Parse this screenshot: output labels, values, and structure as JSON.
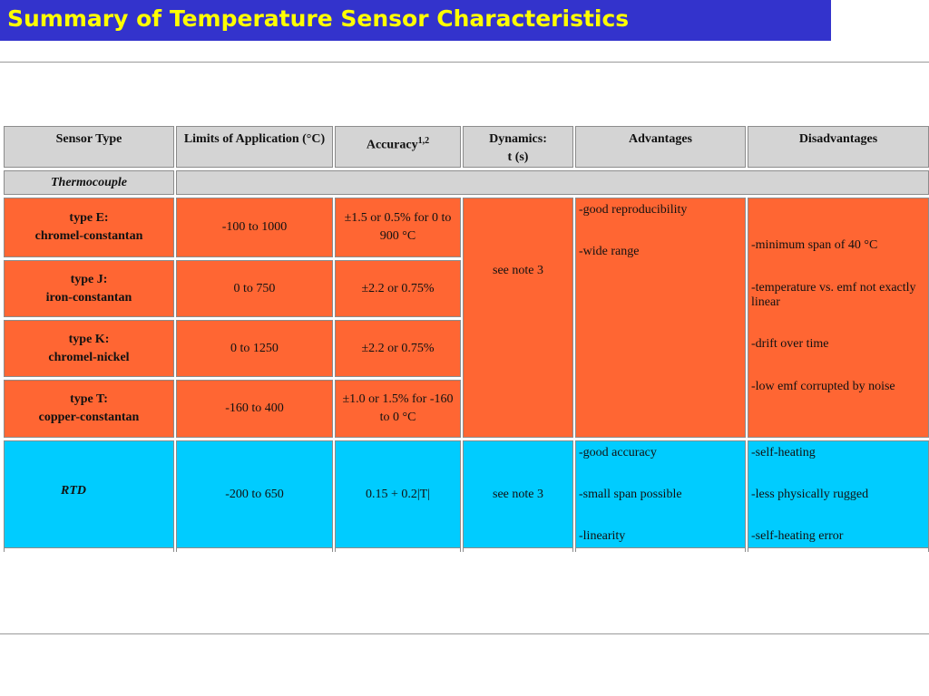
{
  "title": "Summary of Temperature Sensor Characteristics",
  "headers": {
    "sensor_type": "Sensor Type",
    "limits": "Limits of Application (°C)",
    "accuracy": "Accuracy",
    "accuracy_sup": "1,2",
    "dynamics_line1": "Dynamics:",
    "dynamics_line2": "t (s)",
    "advantages": "Advantages",
    "disadvantages": "Disadvantages"
  },
  "thermocouple": {
    "group_label": "Thermocouple",
    "rows": [
      {
        "type": "type E:",
        "material": "chromel-constantan",
        "limits": "-100 to 1000",
        "accuracy_line1": "±1.5 or 0.5% for 0 to",
        "accuracy_line2": "900 °C"
      },
      {
        "type": "type J:",
        "material": "iron-constantan",
        "limits": "0 to 750",
        "accuracy_line1": "±2.2 or 0.75%",
        "accuracy_line2": ""
      },
      {
        "type": "type K:",
        "material": "chromel-nickel",
        "limits": "0 to 1250",
        "accuracy_line1": "±2.2 or 0.75%",
        "accuracy_line2": ""
      },
      {
        "type": "type T:",
        "material": "copper-constantan",
        "limits": "-160 to 400",
        "accuracy_line1": "±1.0 or 1.5% for -160",
        "accuracy_line2": "to 0 °C"
      }
    ],
    "dynamics": "see note 3",
    "advantages": [
      "-good reproducibility",
      "-wide range"
    ],
    "disadvantages": [
      "-minimum span of 40 °C",
      "-temperature vs. emf not exactly linear",
      "-drift over time",
      "-low emf corrupted by noise"
    ]
  },
  "rtd": {
    "label": "RTD",
    "limits": "-200 to 650",
    "accuracy": "0.15 + 0.2|T|",
    "dynamics": "see note 3",
    "advantages": [
      "-good accuracy",
      "-small span possible",
      "-linearity"
    ],
    "disadvantages": [
      "-self-heating",
      "-less physically rugged",
      "-self-heating error"
    ]
  }
}
